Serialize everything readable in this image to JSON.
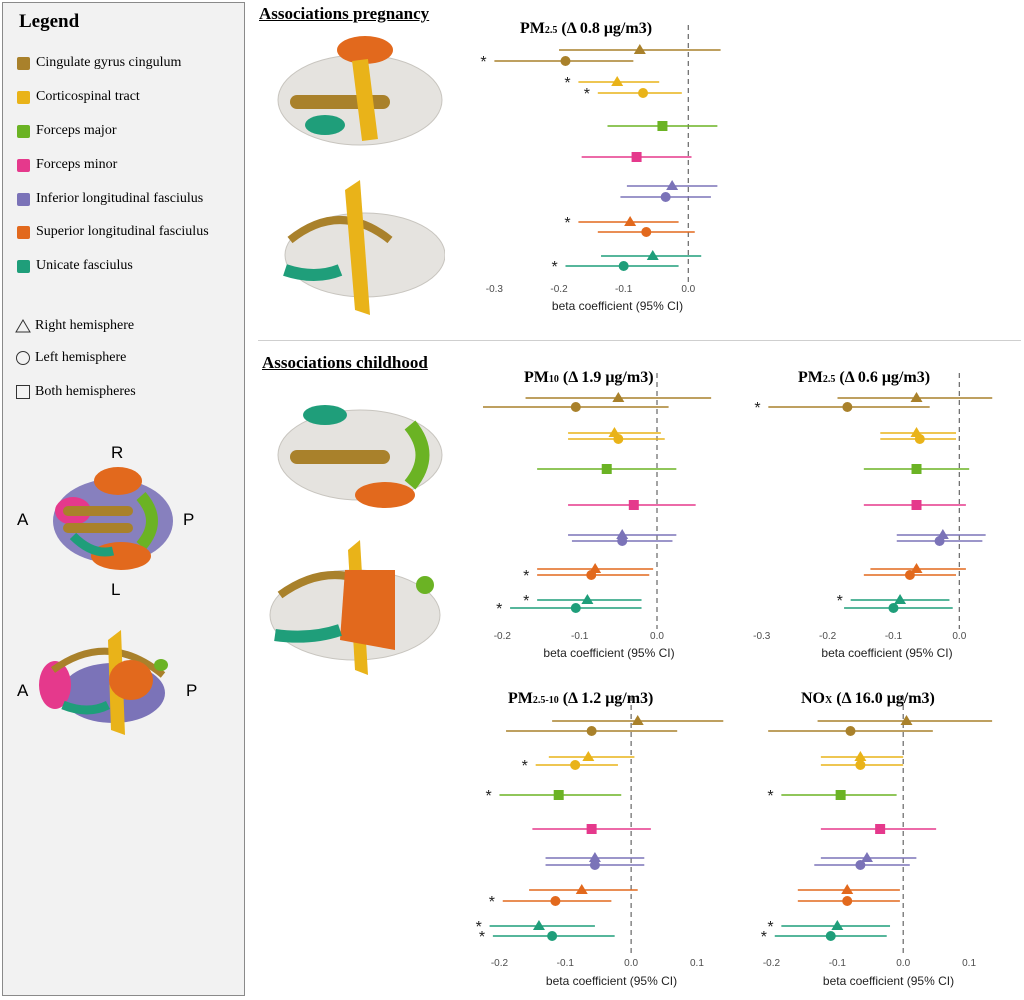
{
  "legend": {
    "title": "Legend",
    "tracts": [
      {
        "label": "Cingulate gyrus cingulum",
        "color": "#a9812b"
      },
      {
        "label": "Corticospinal tract",
        "color": "#e9b319"
      },
      {
        "label": "Forceps major",
        "color": "#6bb324"
      },
      {
        "label": "Forceps minor",
        "color": "#e5398c"
      },
      {
        "label": "Inferior longitudinal fasciulus",
        "color": "#7b73b8"
      },
      {
        "label": "Superior longitudinal fasciulus",
        "color": "#e2691d"
      },
      {
        "label": "Unicate fasciulus",
        "color": "#1f9e7a"
      }
    ],
    "shapes": [
      {
        "label": "Right hemisphere",
        "shape": "triangle"
      },
      {
        "label": "Left hemisphere",
        "shape": "circle"
      },
      {
        "label": "Both hemispheres",
        "shape": "square"
      }
    ],
    "orientation_top": {
      "R": "R",
      "A": "A",
      "P": "P",
      "L": "L"
    },
    "orientation_side": {
      "A": "A",
      "P": "P"
    }
  },
  "sections": {
    "pregnancy": "Associations pregnancy",
    "childhood": "Associations childhood"
  },
  "chart_data": [
    {
      "type": "scatter",
      "id": "preg_pm25",
      "title_main": "PM",
      "title_sub": "2.5",
      "title_rest": " (Δ 0.8 μg/m3)",
      "xlabel": "beta coefficient (95% CI)",
      "xlim": [
        -0.33,
        0.08
      ],
      "xticks": [
        -0.3,
        -0.2,
        -0.1,
        0.0
      ],
      "xticklabels": [
        "-0.3",
        "-0.2",
        "-0.1",
        "0.0"
      ],
      "rows": [
        {
          "tract": 0,
          "shape": "triangle",
          "est": -0.075,
          "lo": -0.2,
          "hi": 0.05,
          "star": false
        },
        {
          "tract": 0,
          "shape": "circle",
          "est": -0.19,
          "lo": -0.3,
          "hi": -0.085,
          "star": true
        },
        {
          "tract": 1,
          "shape": "triangle",
          "est": -0.11,
          "lo": -0.17,
          "hi": -0.045,
          "star": true
        },
        {
          "tract": 1,
          "shape": "circle",
          "est": -0.07,
          "lo": -0.14,
          "hi": -0.01,
          "star": true
        },
        {
          "tract": 2,
          "shape": "square",
          "est": -0.04,
          "lo": -0.125,
          "hi": 0.045,
          "star": false
        },
        {
          "tract": 3,
          "shape": "square",
          "est": -0.08,
          "lo": -0.165,
          "hi": 0.005,
          "star": false
        },
        {
          "tract": 4,
          "shape": "triangle",
          "est": -0.025,
          "lo": -0.095,
          "hi": 0.045,
          "star": false
        },
        {
          "tract": 4,
          "shape": "circle",
          "est": -0.035,
          "lo": -0.105,
          "hi": 0.035,
          "star": false
        },
        {
          "tract": 5,
          "shape": "triangle",
          "est": -0.09,
          "lo": -0.17,
          "hi": -0.015,
          "star": true
        },
        {
          "tract": 5,
          "shape": "circle",
          "est": -0.065,
          "lo": -0.14,
          "hi": 0.01,
          "star": false
        },
        {
          "tract": 6,
          "shape": "triangle",
          "est": -0.055,
          "lo": -0.135,
          "hi": 0.02,
          "star": false
        },
        {
          "tract": 6,
          "shape": "circle",
          "est": -0.1,
          "lo": -0.19,
          "hi": -0.015,
          "star": true
        }
      ]
    },
    {
      "type": "scatter",
      "id": "child_pm10",
      "title_main": "PM",
      "title_sub": "10",
      "title_rest": " (Δ 1.9 μg/m3)",
      "xlabel": "beta coefficient (95% CI)",
      "xlim": [
        -0.225,
        0.075
      ],
      "xticks": [
        -0.2,
        -0.1,
        0.0
      ],
      "xticklabels": [
        "-0.2",
        "-0.1",
        "0.0"
      ],
      "rows": [
        {
          "tract": 0,
          "shape": "triangle",
          "est": -0.05,
          "lo": -0.17,
          "hi": 0.07,
          "star": false
        },
        {
          "tract": 0,
          "shape": "circle",
          "est": -0.105,
          "lo": -0.225,
          "hi": 0.015,
          "star": false
        },
        {
          "tract": 1,
          "shape": "triangle",
          "est": -0.055,
          "lo": -0.115,
          "hi": 0.005,
          "star": false
        },
        {
          "tract": 1,
          "shape": "circle",
          "est": -0.05,
          "lo": -0.115,
          "hi": 0.01,
          "star": false
        },
        {
          "tract": 2,
          "shape": "square",
          "est": -0.065,
          "lo": -0.155,
          "hi": 0.025,
          "star": false
        },
        {
          "tract": 3,
          "shape": "square",
          "est": -0.03,
          "lo": -0.115,
          "hi": 0.05,
          "star": false
        },
        {
          "tract": 4,
          "shape": "triangle",
          "est": -0.045,
          "lo": -0.115,
          "hi": 0.025,
          "star": false
        },
        {
          "tract": 4,
          "shape": "circle",
          "est": -0.045,
          "lo": -0.11,
          "hi": 0.02,
          "star": false
        },
        {
          "tract": 5,
          "shape": "triangle",
          "est": -0.08,
          "lo": -0.155,
          "hi": -0.005,
          "star": false
        },
        {
          "tract": 5,
          "shape": "circle",
          "est": -0.085,
          "lo": -0.155,
          "hi": -0.01,
          "star": true
        },
        {
          "tract": 6,
          "shape": "triangle",
          "est": -0.09,
          "lo": -0.155,
          "hi": -0.02,
          "star": true
        },
        {
          "tract": 6,
          "shape": "circle",
          "est": -0.105,
          "lo": -0.19,
          "hi": -0.02,
          "star": true
        }
      ]
    },
    {
      "type": "scatter",
      "id": "child_pm25",
      "title_main": "PM",
      "title_sub": "2.5",
      "title_rest": " (Δ 0.6 μg/m3)",
      "xlabel": "beta coefficient (95% CI)",
      "xlim": [
        -0.33,
        0.08
      ],
      "xticks": [
        -0.3,
        -0.2,
        -0.1,
        0.0
      ],
      "xticklabels": [
        "-0.3",
        "-0.2",
        "-0.1",
        "0.0"
      ],
      "rows": [
        {
          "tract": 0,
          "shape": "triangle",
          "est": -0.065,
          "lo": -0.185,
          "hi": 0.05,
          "star": false
        },
        {
          "tract": 0,
          "shape": "circle",
          "est": -0.17,
          "lo": -0.29,
          "hi": -0.045,
          "star": true
        },
        {
          "tract": 1,
          "shape": "triangle",
          "est": -0.065,
          "lo": -0.12,
          "hi": -0.005,
          "star": false
        },
        {
          "tract": 1,
          "shape": "circle",
          "est": -0.06,
          "lo": -0.12,
          "hi": -0.005,
          "star": false
        },
        {
          "tract": 2,
          "shape": "square",
          "est": -0.065,
          "lo": -0.145,
          "hi": 0.015,
          "star": false
        },
        {
          "tract": 3,
          "shape": "square",
          "est": -0.065,
          "lo": -0.145,
          "hi": 0.01,
          "star": false
        },
        {
          "tract": 4,
          "shape": "triangle",
          "est": -0.025,
          "lo": -0.095,
          "hi": 0.04,
          "star": false
        },
        {
          "tract": 4,
          "shape": "circle",
          "est": -0.03,
          "lo": -0.095,
          "hi": 0.035,
          "star": false
        },
        {
          "tract": 5,
          "shape": "triangle",
          "est": -0.065,
          "lo": -0.135,
          "hi": 0.01,
          "star": false
        },
        {
          "tract": 5,
          "shape": "circle",
          "est": -0.075,
          "lo": -0.145,
          "hi": -0.005,
          "star": false
        },
        {
          "tract": 6,
          "shape": "triangle",
          "est": -0.09,
          "lo": -0.165,
          "hi": -0.015,
          "star": true
        },
        {
          "tract": 6,
          "shape": "circle",
          "est": -0.1,
          "lo": -0.175,
          "hi": -0.01,
          "star": false
        }
      ]
    },
    {
      "type": "scatter",
      "id": "child_pm2510",
      "title_main": "PM",
      "title_sub": "2.5-10",
      "title_rest": " (Δ 1.2 μg/m3)",
      "xlabel": "beta coefficient (95% CI)",
      "xlim": [
        -0.225,
        0.135
      ],
      "xticks": [
        -0.2,
        -0.1,
        0.0,
        0.1
      ],
      "xticklabels": [
        "-0.2",
        "-0.1",
        "0.0",
        "0.1"
      ],
      "rows": [
        {
          "tract": 0,
          "shape": "triangle",
          "est": 0.01,
          "lo": -0.12,
          "hi": 0.14,
          "star": false
        },
        {
          "tract": 0,
          "shape": "circle",
          "est": -0.06,
          "lo": -0.19,
          "hi": 0.07,
          "star": false
        },
        {
          "tract": 1,
          "shape": "triangle",
          "est": -0.065,
          "lo": -0.125,
          "hi": 0.005,
          "star": false
        },
        {
          "tract": 1,
          "shape": "circle",
          "est": -0.085,
          "lo": -0.145,
          "hi": -0.02,
          "star": true
        },
        {
          "tract": 2,
          "shape": "square",
          "est": -0.11,
          "lo": -0.2,
          "hi": -0.015,
          "star": true
        },
        {
          "tract": 3,
          "shape": "square",
          "est": -0.06,
          "lo": -0.15,
          "hi": 0.03,
          "star": false
        },
        {
          "tract": 4,
          "shape": "triangle",
          "est": -0.055,
          "lo": -0.13,
          "hi": 0.02,
          "star": false
        },
        {
          "tract": 4,
          "shape": "circle",
          "est": -0.055,
          "lo": -0.13,
          "hi": 0.02,
          "star": false
        },
        {
          "tract": 5,
          "shape": "triangle",
          "est": -0.075,
          "lo": -0.155,
          "hi": 0.01,
          "star": false
        },
        {
          "tract": 5,
          "shape": "circle",
          "est": -0.115,
          "lo": -0.195,
          "hi": -0.03,
          "star": true
        },
        {
          "tract": 6,
          "shape": "triangle",
          "est": -0.14,
          "lo": -0.215,
          "hi": -0.055,
          "star": true
        },
        {
          "tract": 6,
          "shape": "circle",
          "est": -0.12,
          "lo": -0.21,
          "hi": -0.025,
          "star": true
        }
      ]
    },
    {
      "type": "scatter",
      "id": "child_nox",
      "title_main": "NO",
      "title_sub": "X",
      "title_rest": " (Δ 16.0 μg/m3)",
      "xlabel": "beta coefficient (95% CI)",
      "xlim": [
        -0.225,
        0.15
      ],
      "xticks": [
        -0.2,
        -0.1,
        0.0,
        0.1
      ],
      "xticklabels": [
        "-0.2",
        "-0.1",
        "0.0",
        "0.1"
      ],
      "rows": [
        {
          "tract": 0,
          "shape": "triangle",
          "est": 0.005,
          "lo": -0.13,
          "hi": 0.135,
          "star": false
        },
        {
          "tract": 0,
          "shape": "circle",
          "est": -0.08,
          "lo": -0.205,
          "hi": 0.045,
          "star": false
        },
        {
          "tract": 1,
          "shape": "triangle",
          "est": -0.065,
          "lo": -0.125,
          "hi": 0.0,
          "star": false
        },
        {
          "tract": 1,
          "shape": "circle",
          "est": -0.065,
          "lo": -0.125,
          "hi": 0.0,
          "star": false
        },
        {
          "tract": 2,
          "shape": "square",
          "est": -0.095,
          "lo": -0.185,
          "hi": -0.01,
          "star": true
        },
        {
          "tract": 3,
          "shape": "square",
          "est": -0.035,
          "lo": -0.125,
          "hi": 0.05,
          "star": false
        },
        {
          "tract": 4,
          "shape": "triangle",
          "est": -0.055,
          "lo": -0.125,
          "hi": 0.02,
          "star": false
        },
        {
          "tract": 4,
          "shape": "circle",
          "est": -0.065,
          "lo": -0.135,
          "hi": 0.01,
          "star": false
        },
        {
          "tract": 5,
          "shape": "triangle",
          "est": -0.085,
          "lo": -0.16,
          "hi": -0.005,
          "star": false
        },
        {
          "tract": 5,
          "shape": "circle",
          "est": -0.085,
          "lo": -0.16,
          "hi": -0.005,
          "star": false
        },
        {
          "tract": 6,
          "shape": "triangle",
          "est": -0.1,
          "lo": -0.185,
          "hi": -0.02,
          "star": true
        },
        {
          "tract": 6,
          "shape": "circle",
          "est": -0.11,
          "lo": -0.195,
          "hi": -0.025,
          "star": true
        }
      ]
    }
  ]
}
